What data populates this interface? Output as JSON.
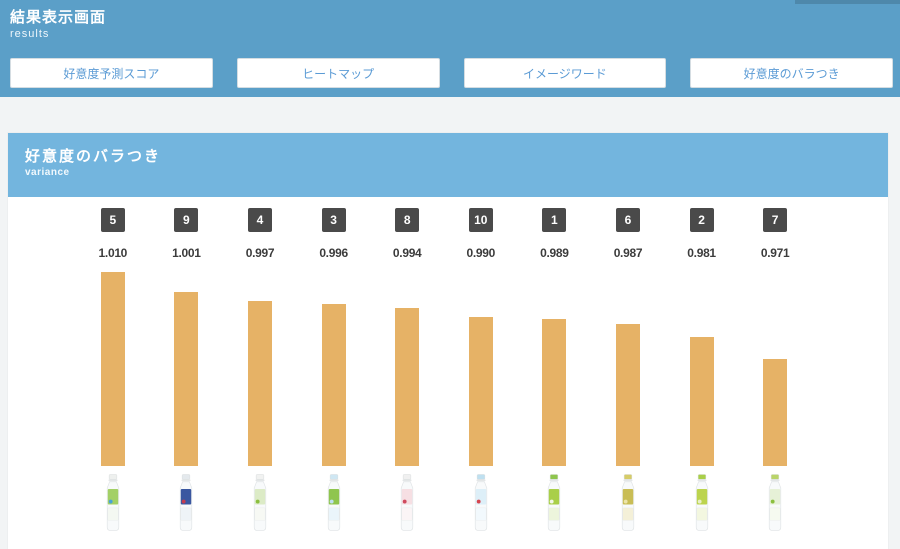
{
  "header": {
    "title": "結果表示画面",
    "subtitle": "results",
    "bg_color": "#5b9fc8",
    "tabs": [
      {
        "label": "好意度予測スコア"
      },
      {
        "label": "ヒートマップ"
      },
      {
        "label": "イメージワード"
      },
      {
        "label": "好意度のバラつき"
      }
    ],
    "tab_text_color": "#5b9bd5"
  },
  "panel": {
    "title": "好意度のバラつき",
    "subtitle": "variance",
    "header_bg": "#73b5de"
  },
  "chart_data": {
    "type": "bar",
    "title": "好意度のバラつき",
    "subtitle": "variance",
    "categories": [
      "5",
      "9",
      "4",
      "3",
      "8",
      "10",
      "1",
      "6",
      "2",
      "7"
    ],
    "values": [
      1.01,
      1.001,
      0.997,
      0.996,
      0.994,
      0.99,
      0.989,
      0.987,
      0.981,
      0.971
    ],
    "value_labels": [
      "1.010",
      "1.001",
      "0.997",
      "0.996",
      "0.994",
      "0.990",
      "0.989",
      "0.987",
      "0.981",
      "0.971"
    ],
    "xlabel": "",
    "ylabel": "",
    "ylim": [
      0.923,
      1.012
    ],
    "grid": false,
    "legend": false,
    "bar_color": "#e6b266",
    "badge_bg": "#4a4a4a",
    "value_text_color": "#3c3c3c",
    "products": [
      {
        "name": "bottle-green-grape-clear",
        "cap": "#eef0ee",
        "label": "#a3d066",
        "accent": "#4aa3d8",
        "body": "#f4f8f2"
      },
      {
        "name": "bottle-dark-blue-label",
        "cap": "#e4e9ed",
        "label": "#3a57a0",
        "accent": "#c43c50",
        "body": "#eef3f7"
      },
      {
        "name": "bottle-pale-green-grape",
        "cap": "#f1f2f1",
        "label": "#dcebc6",
        "accent": "#8bbf3f",
        "body": "#f7f9f4"
      },
      {
        "name": "bottle-lightblue-grape",
        "cap": "#cfe7f3",
        "label": "#8fc54e",
        "accent": "#bfe0f0",
        "body": "#eaf5fb"
      },
      {
        "name": "bottle-red-script-label",
        "cap": "#f0f0f0",
        "label": "#f6dfe3",
        "accent": "#cf4a5e",
        "body": "#fbf5f6"
      },
      {
        "name": "bottle-strawberry-lightblue",
        "cap": "#bfe0f0",
        "label": "#ddeff8",
        "accent": "#d6454f",
        "body": "#f2f9fd"
      },
      {
        "name": "bottle-green-muscat",
        "cap": "#8fc54e",
        "label": "#a9cf49",
        "accent": "#f2f7e8",
        "body": "#edf5dc"
      },
      {
        "name": "bottle-gold-label",
        "cap": "#d6cc68",
        "label": "#c9bd55",
        "accent": "#ece4a8",
        "body": "#f4f0d8"
      },
      {
        "name": "bottle-yellowgreen-muscat",
        "cap": "#a9cf49",
        "label": "#bcd44e",
        "accent": "#e9f0c8",
        "body": "#f3f7e0"
      },
      {
        "name": "bottle-white-green-grape",
        "cap": "#b9d46a",
        "label": "#e6f1d7",
        "accent": "#8bbf3f",
        "body": "#f6faf0"
      }
    ]
  }
}
